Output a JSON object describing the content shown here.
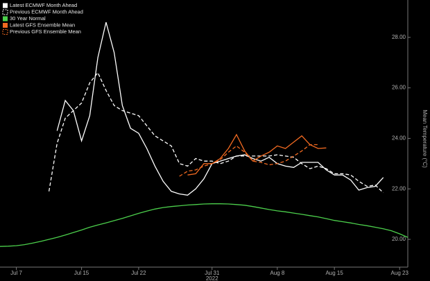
{
  "chart_data": {
    "type": "line",
    "ylabel": "Mean Temperature (°C)",
    "year_label": "2022",
    "ylim": [
      18.9,
      29.48
    ],
    "yticks": [
      {
        "value": 20,
        "label": "20.00"
      },
      {
        "value": 22,
        "label": "22.00"
      },
      {
        "value": 24,
        "label": "24.00"
      },
      {
        "value": 26,
        "label": "26.00"
      },
      {
        "value": 28,
        "label": "28.00"
      }
    ],
    "xlim": [
      "2022-07-05",
      "2022-08-24"
    ],
    "xticks": [
      {
        "value": "2022-07-07",
        "label": "Jul 7"
      },
      {
        "value": "2022-07-15",
        "label": "Jul 15"
      },
      {
        "value": "2022-07-22",
        "label": "Jul 22"
      },
      {
        "value": "2022-07-31",
        "label": "Jul 31"
      },
      {
        "value": "2022-08-08",
        "label": "Aug 8"
      },
      {
        "value": "2022-08-15",
        "label": "Aug 15"
      },
      {
        "value": "2022-08-23",
        "label": "Aug 23"
      }
    ],
    "legend": "top-left",
    "series": [
      {
        "name": "Latest ECMWF Month Ahead",
        "color": "#ffffff",
        "dashed": false,
        "start": "2022-07-12",
        "values": [
          24.3,
          25.5,
          25.1,
          23.9,
          24.9,
          27.2,
          28.6,
          27.4,
          25.3,
          24.4,
          24.2,
          23.6,
          22.9,
          22.3,
          21.9,
          21.8,
          21.75,
          22.0,
          22.4,
          23.0,
          23.1,
          23.2,
          23.3,
          23.35,
          23.2,
          23.1,
          23.25,
          23.0,
          22.9,
          22.85,
          23.05,
          23.05,
          23.05,
          22.75,
          22.55,
          22.55,
          22.35,
          21.95,
          22.05,
          22.1,
          22.45
        ]
      },
      {
        "name": "Previous ECMWF Month Ahead",
        "color": "#ffffff",
        "dashed": true,
        "start": "2022-07-11",
        "values": [
          21.9,
          23.8,
          24.8,
          25.1,
          25.4,
          26.2,
          26.6,
          25.9,
          25.3,
          25.1,
          25.0,
          24.9,
          24.5,
          24.1,
          23.9,
          23.7,
          23.0,
          22.9,
          23.2,
          23.1,
          23.1,
          23.0,
          23.1,
          23.3,
          23.3,
          23.3,
          23.3,
          23.3,
          23.35,
          23.3,
          23.25,
          23.0,
          22.8,
          22.9,
          22.8,
          22.6,
          22.6,
          22.55,
          22.3,
          22.1,
          22.15,
          21.85
        ]
      },
      {
        "name": "30 Year Normal",
        "color": "#4cd04c",
        "dashed": false,
        "start": "2022-07-05",
        "values": [
          19.72,
          19.73,
          19.75,
          19.79,
          19.85,
          19.92,
          20.0,
          20.08,
          20.17,
          20.27,
          20.37,
          20.48,
          20.57,
          20.65,
          20.74,
          20.83,
          20.93,
          21.03,
          21.12,
          21.2,
          21.26,
          21.3,
          21.33,
          21.36,
          21.38,
          21.4,
          21.41,
          21.41,
          21.4,
          21.38,
          21.35,
          21.3,
          21.24,
          21.18,
          21.13,
          21.09,
          21.04,
          20.99,
          20.94,
          20.89,
          20.82,
          20.75,
          20.7,
          20.65,
          20.59,
          20.54,
          20.48,
          20.42,
          20.34,
          20.22,
          20.08
        ]
      },
      {
        "name": "Latest GFS Ensemble Mean",
        "color": "#f26a21",
        "dashed": false,
        "start": "2022-07-28",
        "values": [
          22.55,
          22.6,
          23.0,
          23.0,
          23.2,
          23.6,
          24.15,
          23.5,
          23.1,
          23.3,
          23.45,
          23.7,
          23.6,
          23.85,
          24.1,
          23.75,
          23.6,
          23.62
        ]
      },
      {
        "name": "Previous GFS Ensemble Mean",
        "color": "#f26a21",
        "dashed": true,
        "start": "2022-07-27",
        "values": [
          22.5,
          22.7,
          22.75,
          22.9,
          23.0,
          23.15,
          23.45,
          23.7,
          23.45,
          23.1,
          23.05,
          22.95,
          23.0,
          23.1,
          23.3,
          23.5,
          23.75,
          23.75
        ]
      }
    ]
  }
}
